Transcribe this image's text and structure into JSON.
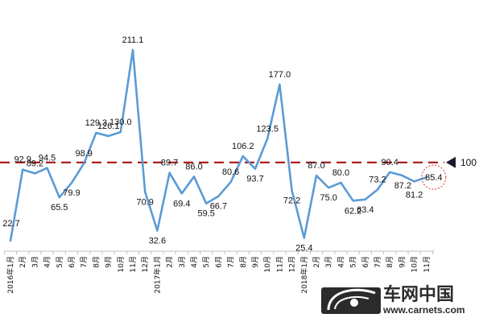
{
  "chart_data": {
    "type": "line",
    "title": "",
    "xlabel": "",
    "ylabel": "",
    "categories": [
      "2016年1月",
      "2月",
      "3月",
      "4月",
      "5月",
      "6月",
      "7月",
      "8月",
      "9月",
      "10月",
      "11月",
      "12月",
      "2017年1月",
      "2月",
      "3月",
      "4月",
      "5月",
      "6月",
      "7月",
      "8月",
      "9月",
      "10月",
      "11月",
      "12月",
      "2018年1月",
      "2月",
      "3月",
      "4月",
      "5月",
      "6月",
      "7月",
      "8月",
      "9月",
      "10月",
      "11月"
    ],
    "series": [
      {
        "values": [
          22.7,
          92.9,
          89.2,
          94.5,
          65.5,
          79.9,
          98.9,
          129.3,
          126.1,
          130.0,
          211.1,
          70.9,
          32.6,
          89.7,
          69.4,
          86.0,
          59.5,
          66.7,
          80.6,
          106.2,
          93.7,
          123.5,
          177.0,
          72.2,
          25.4,
          87.0,
          75.0,
          80.0,
          62.2,
          63.4,
          73.2,
          90.4,
          87.2,
          81.2,
          85.4
        ],
        "color": "#5b9bd5"
      }
    ],
    "data_labels": [
      "22.7",
      "92.9",
      "89.2",
      "94.5",
      "65.5",
      "79.9",
      "98.9",
      "129.3",
      "126.1",
      "130.0",
      "211.1",
      "70.9",
      "32.6",
      "89.7",
      "69.4",
      "86.0",
      "59.5",
      "66.7",
      "80.6",
      "106.2",
      "93.7",
      "123.5",
      "177.0",
      "72.2",
      "25.4",
      "87.0",
      "75.0",
      "80.0",
      "62.2",
      "63.4",
      "73.2",
      "90.4",
      "87.2",
      "81.2",
      "85.4"
    ],
    "reference_line": {
      "value": 100,
      "label": "100",
      "color": "#a31515",
      "style": "dashed"
    },
    "highlight": {
      "index": 34,
      "color": "#e03030",
      "style": "dotted-circle"
    },
    "ylim": [
      0,
      235
    ],
    "grid": false,
    "legend": "none"
  },
  "watermark": {
    "cn": "车网中国",
    "url": "www.carnets.com"
  }
}
